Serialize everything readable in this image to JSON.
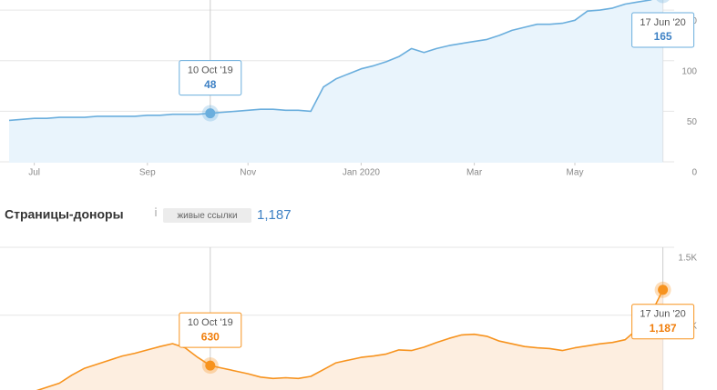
{
  "chart_data": [
    {
      "type": "area",
      "color": "#6aaedd",
      "fill_color": "#e9f4fc",
      "categories": [
        null,
        null,
        "Jul",
        null,
        null,
        null,
        null,
        null,
        null,
        null,
        null,
        "Sep",
        null,
        null,
        null,
        null,
        null,
        null,
        null,
        "Nov",
        null,
        null,
        null,
        null,
        null,
        null,
        null,
        null,
        "Jan 2020",
        null,
        null,
        null,
        null,
        null,
        null,
        null,
        null,
        "Mar",
        null,
        null,
        null,
        null,
        null,
        null,
        null,
        "May",
        null,
        null,
        null,
        null,
        null,
        null,
        null
      ],
      "values": [
        41,
        42,
        43,
        43,
        44,
        44,
        44,
        45,
        45,
        45,
        45,
        46,
        46,
        47,
        47,
        47,
        48,
        49,
        50,
        51,
        52,
        52,
        51,
        51,
        50,
        74,
        82,
        87,
        92,
        95,
        99,
        104,
        112,
        108,
        112,
        115,
        117,
        119,
        121,
        125,
        130,
        133,
        136,
        136,
        137,
        140,
        149,
        150,
        152,
        156,
        158,
        160,
        165
      ],
      "ylim": [
        0,
        160
      ],
      "yticks": [
        0,
        50,
        100,
        150
      ],
      "grid": true,
      "value_color": "#3f82c5",
      "annotations": [
        {
          "label": "10 Oct '19",
          "value": 48
        },
        {
          "label": "17 Jun '20",
          "value": 165
        }
      ]
    },
    {
      "type": "area",
      "title": "Страницы-доноры",
      "subtitle": "живые ссылки",
      "summary_value": 1187,
      "summary_label": "1,187",
      "color": "#f7931e",
      "fill_color": "#fdeee0",
      "values": [
        400,
        420,
        440,
        470,
        500,
        560,
        610,
        640,
        670,
        700,
        720,
        745,
        770,
        791,
        760,
        690,
        630,
        610,
        590,
        570,
        545,
        535,
        540,
        535,
        550,
        600,
        650,
        670,
        690,
        700,
        715,
        745,
        740,
        765,
        800,
        830,
        855,
        860,
        845,
        810,
        790,
        770,
        760,
        755,
        740,
        760,
        775,
        790,
        800,
        820,
        900,
        1000,
        1187
      ],
      "ylim": [
        450,
        1500
      ],
      "yticks": [
        {
          "value": 1000,
          "label": "1K"
        },
        {
          "value": 1500,
          "label": "1.5K"
        }
      ],
      "grid": true,
      "value_color": "#f07d0a",
      "annotations": [
        {
          "label": "10 Oct '19",
          "value": 630
        },
        {
          "label": "17 Jun '20",
          "value": 1187,
          "value_label": "1,187"
        }
      ]
    }
  ]
}
